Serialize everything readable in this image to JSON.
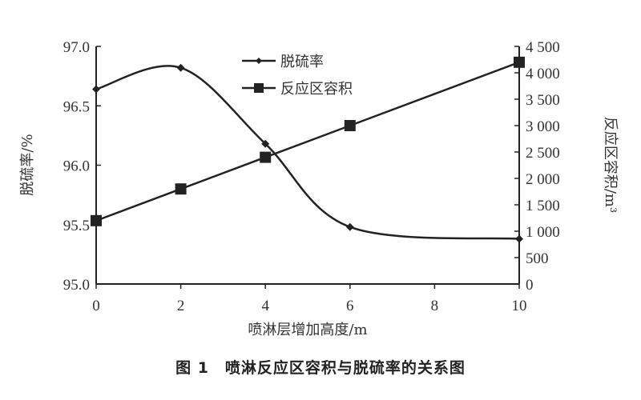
{
  "caption": "图 1　喷淋反应区容积与脱硫率的关系图",
  "chart_data": {
    "type": "line",
    "xlabel": "喷淋层增加高度/m",
    "ylabel": "脱硫率/%",
    "y2label": "反应区容积/m³",
    "xlim": [
      0,
      10
    ],
    "ylim": [
      95.0,
      97.0
    ],
    "y2lim": [
      0,
      4500
    ],
    "x_ticks": [
      "0",
      "2",
      "4",
      "6",
      "8",
      "10"
    ],
    "y_ticks": [
      "95.0",
      "95.5",
      "96.0",
      "96.5",
      "97.0"
    ],
    "y2_ticks": [
      "0",
      "500",
      "1 000",
      "1 500",
      "2 000",
      "2 500",
      "3 000",
      "3 500",
      "4 000",
      "4 500"
    ],
    "grid": false,
    "legend": "top-center",
    "series": [
      {
        "name": "脱硫率",
        "axis": "left",
        "marker": "diamond",
        "smooth": true,
        "color": "#222222",
        "x": [
          0,
          2,
          4,
          6,
          10
        ],
        "values": [
          96.64,
          96.82,
          96.18,
          95.48,
          95.38
        ]
      },
      {
        "name": "反应区容积",
        "axis": "right",
        "marker": "square",
        "smooth": false,
        "color": "#222222",
        "x": [
          0,
          2,
          4,
          6,
          10
        ],
        "values": [
          1200,
          1800,
          2400,
          3000,
          4200
        ]
      }
    ]
  }
}
